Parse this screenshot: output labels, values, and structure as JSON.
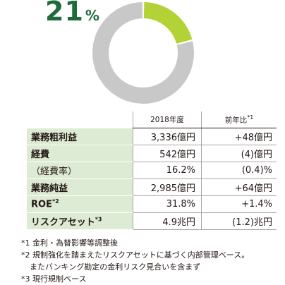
{
  "chart_data": {
    "type": "pie",
    "highlight_value": "21",
    "highlight_unit": "%",
    "slices": [
      {
        "value": 21,
        "color": "#b3d236"
      },
      {
        "value": 79,
        "color": "#c8c8c8"
      }
    ]
  },
  "table": {
    "headers": [
      "2018年度",
      "前年比"
    ],
    "header_note": "*1",
    "rows": [
      {
        "label": "業務粗利益",
        "note": "",
        "value": "3,336億円",
        "yoy": "+48億円",
        "bold": true
      },
      {
        "label": "経費",
        "note": "",
        "value": "542億円",
        "yoy": "(4)億円",
        "bold": true
      },
      {
        "label": "（経費率）",
        "note": "",
        "value": "16.2%",
        "yoy": "(0.4)%",
        "bold": false
      },
      {
        "label": "業務純益",
        "note": "",
        "value": "2,985億円",
        "yoy": "+64億円",
        "bold": true
      },
      {
        "label": "ROE",
        "note": "*2",
        "value": "31.8%",
        "yoy": "+1.4%",
        "bold": true
      },
      {
        "label": "リスクアセット",
        "note": "*3",
        "value": "4.9兆円",
        "yoy": "(1.2)兆円",
        "bold": true
      }
    ]
  },
  "notes": [
    "*1 金利・為替影響等調整後",
    "*2 規制強化を踏まえたリスクアセットに基づく内部管理ベース。",
    "またバンキング勘定の金利リスク見合いを含まず",
    "*3 現行規制ベース"
  ]
}
